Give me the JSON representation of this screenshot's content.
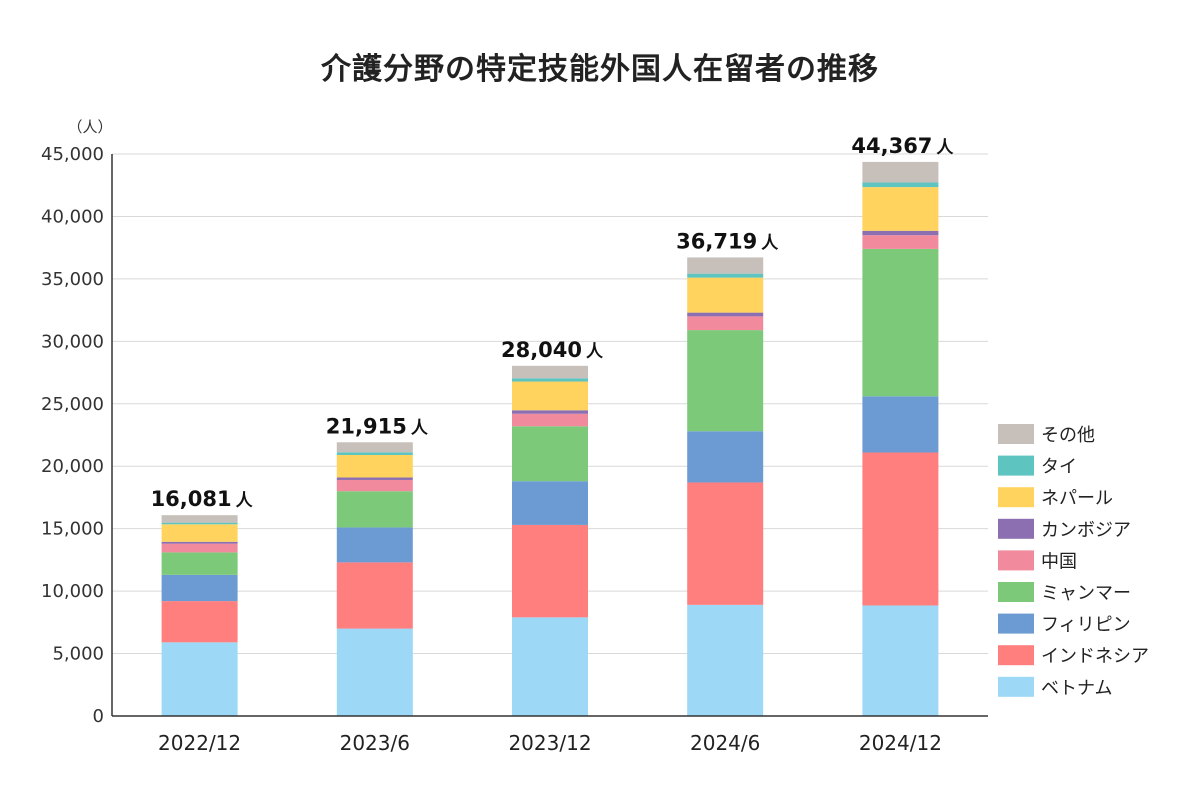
{
  "chart_data": {
    "type": "bar",
    "stacked": true,
    "title": "介護分野の特定技能外国人在留者の推移",
    "ylabel": "（人）",
    "ylim": [
      0,
      45000
    ],
    "yticks": [
      0,
      5000,
      10000,
      15000,
      20000,
      25000,
      30000,
      35000,
      40000,
      45000
    ],
    "ytick_labels": [
      "0",
      "5,000",
      "10,000",
      "15,000",
      "20,000",
      "25,000",
      "30,000",
      "35,000",
      "40,000",
      "45,000"
    ],
    "grid": true,
    "legend_position": "right",
    "categories": [
      "2022/12",
      "2023/6",
      "2023/12",
      "2024/6",
      "2024/12"
    ],
    "totals": [
      "16,081",
      "21,915",
      "28,040",
      "36,719",
      "44,367"
    ],
    "total_unit": "人",
    "series": [
      {
        "name": "ベトナム",
        "color": "#9dd9f7",
        "values": [
          5900,
          7000,
          7900,
          8900,
          8850
        ]
      },
      {
        "name": "インドネシア",
        "color": "#ff7f7f",
        "values": [
          3300,
          5300,
          7400,
          9800,
          12250
        ]
      },
      {
        "name": "フィリピン",
        "color": "#6b9bd2",
        "values": [
          2100,
          2800,
          3500,
          4100,
          4500
        ]
      },
      {
        "name": "ミャンマー",
        "color": "#7dc97a",
        "values": [
          1800,
          2900,
          4400,
          8100,
          11800
        ]
      },
      {
        "name": "中国",
        "color": "#f08a9c",
        "values": [
          700,
          900,
          1000,
          1100,
          1100
        ]
      },
      {
        "name": "カンボジア",
        "color": "#8b6fb0",
        "values": [
          150,
          200,
          280,
          300,
          350
        ]
      },
      {
        "name": "ネパール",
        "color": "#ffd35e",
        "values": [
          1400,
          1800,
          2300,
          2800,
          3500
        ]
      },
      {
        "name": "タイ",
        "color": "#5ec4c0",
        "values": [
          131,
          215,
          260,
          319,
          367
        ]
      },
      {
        "name": "その他",
        "color": "#c7bfba",
        "values": [
          600,
          800,
          1000,
          1300,
          1650
        ]
      }
    ]
  }
}
